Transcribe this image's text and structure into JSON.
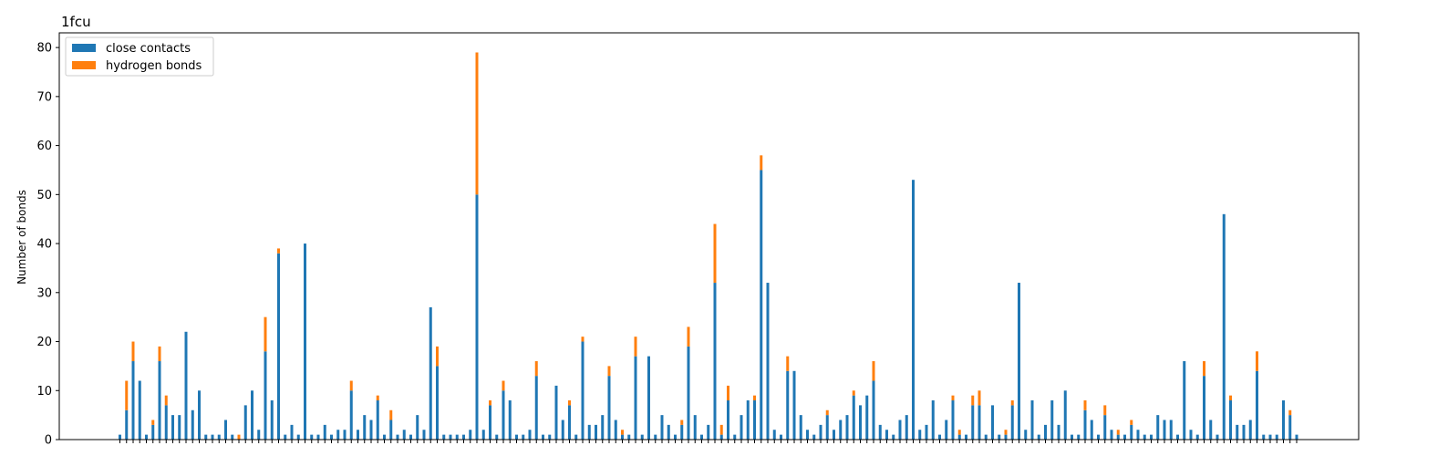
{
  "chart_data": {
    "type": "bar",
    "stacked": true,
    "title": "1fcu",
    "xlabel": "",
    "ylabel": "Number of bonds",
    "ylim": [
      0,
      83
    ],
    "yticks": [
      0,
      10,
      20,
      30,
      40,
      50,
      60,
      70,
      80
    ],
    "x_tick_labels_shown": false,
    "legend_position": "top-left",
    "grid": false,
    "series": [
      {
        "name": "close contacts",
        "color": "#1f77b4",
        "values": [
          1,
          6,
          16,
          12,
          1,
          3,
          16,
          7,
          5,
          5,
          22,
          6,
          10,
          1,
          1,
          1,
          4,
          1,
          0,
          7,
          10,
          2,
          18,
          8,
          38,
          1,
          3,
          1,
          40,
          1,
          1,
          3,
          1,
          2,
          2,
          10,
          2,
          5,
          4,
          8,
          1,
          4,
          1,
          2,
          1,
          5,
          2,
          27,
          15,
          1,
          1,
          1,
          1,
          2,
          50,
          2,
          7,
          1,
          10,
          8,
          1,
          1,
          2,
          13,
          1,
          1,
          11,
          4,
          7,
          1,
          20,
          3,
          3,
          5,
          13,
          4,
          1,
          1,
          17,
          1,
          17,
          1,
          5,
          3,
          1,
          3,
          19,
          5,
          1,
          3,
          32,
          1,
          8,
          1,
          5,
          8,
          8,
          55,
          32,
          2,
          1,
          14,
          14,
          5,
          2,
          1,
          3,
          5,
          2,
          4,
          5,
          9,
          7,
          9,
          12,
          3,
          2,
          1,
          4,
          5,
          53,
          2,
          3,
          8,
          1,
          4,
          8,
          1,
          1,
          7,
          7,
          1,
          7,
          1,
          1,
          7,
          32,
          2,
          8,
          1,
          3,
          8,
          3,
          10,
          1,
          1,
          6,
          4,
          1,
          5,
          2,
          1,
          1,
          3,
          2,
          1,
          1,
          5,
          4,
          4,
          1,
          16,
          2,
          1,
          13,
          4,
          1,
          46,
          8,
          3,
          3,
          4,
          14,
          1,
          1,
          1,
          8,
          5,
          1
        ]
      },
      {
        "name": "hydrogen bonds",
        "color": "#ff7f0e",
        "values": [
          0,
          6,
          4,
          0,
          0,
          1,
          3,
          2,
          0,
          0,
          0,
          0,
          0,
          0,
          0,
          0,
          0,
          0,
          1,
          0,
          0,
          0,
          7,
          0,
          1,
          0,
          0,
          0,
          0,
          0,
          0,
          0,
          0,
          0,
          0,
          2,
          0,
          0,
          0,
          1,
          0,
          2,
          0,
          0,
          0,
          0,
          0,
          0,
          4,
          0,
          0,
          0,
          0,
          0,
          29,
          0,
          1,
          0,
          2,
          0,
          0,
          0,
          0,
          3,
          0,
          0,
          0,
          0,
          1,
          0,
          1,
          0,
          0,
          0,
          2,
          0,
          1,
          0,
          4,
          0,
          0,
          0,
          0,
          0,
          0,
          1,
          4,
          0,
          0,
          0,
          12,
          2,
          3,
          0,
          0,
          0,
          1,
          3,
          0,
          0,
          0,
          3,
          0,
          0,
          0,
          0,
          0,
          1,
          0,
          0,
          0,
          1,
          0,
          0,
          4,
          0,
          0,
          0,
          0,
          0,
          0,
          0,
          0,
          0,
          0,
          0,
          1,
          1,
          0,
          2,
          3,
          0,
          0,
          0,
          1,
          1,
          0,
          0,
          0,
          0,
          0,
          0,
          0,
          0,
          0,
          0,
          2,
          0,
          0,
          2,
          0,
          1,
          0,
          1,
          0,
          0,
          0,
          0,
          0,
          0,
          0,
          0,
          0,
          0,
          3,
          0,
          0,
          0,
          1,
          0,
          0,
          0,
          4,
          0,
          0,
          0,
          0,
          1,
          0
        ]
      }
    ]
  }
}
